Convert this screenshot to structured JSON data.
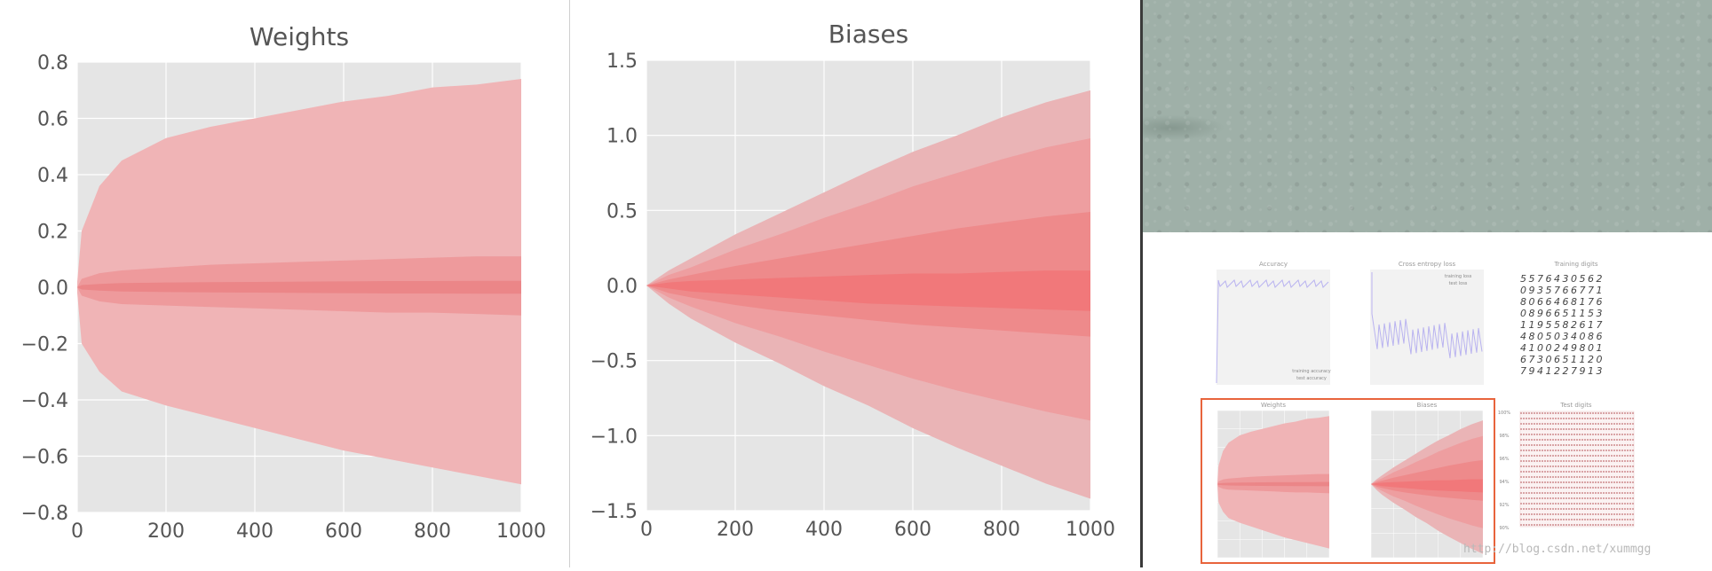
{
  "charts": [
    {
      "id": "weights",
      "chart_data": {
        "type": "area",
        "title": "Weights",
        "xlim": [
          0,
          1000
        ],
        "ylim": [
          -0.8,
          0.8
        ],
        "xticks": [
          0,
          200,
          400,
          600,
          800,
          1000
        ],
        "yticks": [
          -0.8,
          -0.6,
          -0.4,
          -0.2,
          0.0,
          0.2,
          0.4,
          0.6,
          0.8
        ],
        "yticklabels": [
          "−0.8",
          "−0.6",
          "−0.4",
          "−0.2",
          "0.0",
          "0.2",
          "0.4",
          "0.6",
          "0.8"
        ],
        "xticklabels": [
          "0",
          "200",
          "400",
          "600",
          "800",
          "1000"
        ],
        "grid": true,
        "x": [
          0,
          10,
          50,
          100,
          200,
          300,
          400,
          500,
          600,
          700,
          800,
          900,
          1000
        ],
        "bands": [
          {
            "upper": [
              0.02,
              0.2,
              0.36,
              0.45,
              0.53,
              0.57,
              0.6,
              0.63,
              0.66,
              0.68,
              0.71,
              0.72,
              0.74
            ],
            "lower": [
              -0.02,
              -0.2,
              -0.3,
              -0.37,
              -0.42,
              -0.46,
              -0.5,
              -0.54,
              -0.58,
              -0.61,
              -0.64,
              -0.67,
              -0.7
            ]
          },
          {
            "upper": [
              0.0,
              0.03,
              0.05,
              0.06,
              0.07,
              0.08,
              0.085,
              0.09,
              0.095,
              0.1,
              0.105,
              0.11,
              0.11
            ],
            "lower": [
              0.0,
              -0.03,
              -0.05,
              -0.06,
              -0.065,
              -0.07,
              -0.075,
              -0.08,
              -0.085,
              -0.09,
              -0.09,
              -0.095,
              -0.1
            ]
          },
          {
            "upper": [
              0.0,
              0.008,
              0.012,
              0.015,
              0.017,
              0.018,
              0.019,
              0.02,
              0.021,
              0.022,
              0.022,
              0.023,
              0.023
            ],
            "lower": [
              0.0,
              -0.008,
              -0.012,
              -0.015,
              -0.017,
              -0.018,
              -0.019,
              -0.02,
              -0.021,
              -0.022,
              -0.022,
              -0.023,
              -0.023
            ]
          }
        ],
        "band_colors": [
          "#f0b4b6",
          "#ee9496",
          "#ea7d80"
        ],
        "band_opacity": [
          1.0,
          0.8,
          0.7
        ]
      }
    },
    {
      "id": "biases",
      "chart_data": {
        "type": "area",
        "title": "Biases",
        "xlim": [
          0,
          1000
        ],
        "ylim": [
          -1.5,
          1.5
        ],
        "xticks": [
          0,
          200,
          400,
          600,
          800,
          1000
        ],
        "yticks": [
          -1.5,
          -1.0,
          -0.5,
          0.0,
          0.5,
          1.0,
          1.5
        ],
        "yticklabels": [
          "−1.5",
          "−1.0",
          "−0.5",
          "0.0",
          "0.5",
          "1.0",
          "1.5"
        ],
        "xticklabels": [
          "0",
          "200",
          "400",
          "600",
          "800",
          "1000"
        ],
        "grid": true,
        "x": [
          0,
          50,
          100,
          200,
          300,
          400,
          500,
          600,
          700,
          800,
          900,
          1000
        ],
        "bands": [
          {
            "upper": [
              0.0,
              0.1,
              0.18,
              0.34,
              0.48,
              0.62,
              0.76,
              0.89,
              1.0,
              1.12,
              1.22,
              1.3
            ],
            "lower": [
              0.0,
              -0.12,
              -0.22,
              -0.38,
              -0.52,
              -0.67,
              -0.8,
              -0.95,
              -1.08,
              -1.2,
              -1.32,
              -1.42
            ]
          },
          {
            "upper": [
              0.0,
              0.07,
              0.12,
              0.24,
              0.34,
              0.45,
              0.55,
              0.66,
              0.75,
              0.84,
              0.92,
              0.98
            ],
            "lower": [
              0.0,
              -0.08,
              -0.14,
              -0.25,
              -0.34,
              -0.44,
              -0.53,
              -0.62,
              -0.7,
              -0.77,
              -0.84,
              -0.9
            ]
          },
          {
            "upper": [
              0.0,
              0.04,
              0.07,
              0.13,
              0.18,
              0.23,
              0.28,
              0.33,
              0.38,
              0.42,
              0.46,
              0.49
            ],
            "lower": [
              0.0,
              -0.05,
              -0.08,
              -0.13,
              -0.17,
              -0.2,
              -0.23,
              -0.26,
              -0.28,
              -0.3,
              -0.32,
              -0.34
            ]
          },
          {
            "upper": [
              0.0,
              0.02,
              0.03,
              0.04,
              0.05,
              0.06,
              0.07,
              0.08,
              0.08,
              0.09,
              0.1,
              0.1
            ],
            "lower": [
              0.0,
              -0.02,
              -0.04,
              -0.06,
              -0.08,
              -0.1,
              -0.12,
              -0.13,
              -0.14,
              -0.15,
              -0.16,
              -0.17
            ]
          }
        ],
        "band_colors": [
          "#eab4b6",
          "#ee9a9c",
          "#ee8486",
          "#f17174"
        ],
        "band_opacity": [
          1.0,
          0.85,
          0.8,
          0.75
        ]
      }
    }
  ],
  "thumbnail": {
    "titles": {
      "accuracy": "Accuracy",
      "loss": "Cross entropy loss",
      "training_digits": "Training digits",
      "weights": "Weights",
      "biases": "Biases",
      "test_digits": "Test digits"
    },
    "legend_accuracy": [
      "training accuracy",
      "test accuracy"
    ],
    "legend_loss": [
      "training loss",
      "test loss"
    ],
    "test_digit_ticks": [
      "100%",
      "98%",
      "96%",
      "94%",
      "92%",
      "90%"
    ],
    "digit_rows": [
      "5576430562",
      "0935766771",
      "8066468176",
      "0896651153",
      "1195582617",
      "4805034086",
      "4100249801",
      "6730651120",
      "7941227913"
    ],
    "highlight_color": "#e8643c"
  },
  "watermark": "http://blog.csdn.net/xummgg"
}
